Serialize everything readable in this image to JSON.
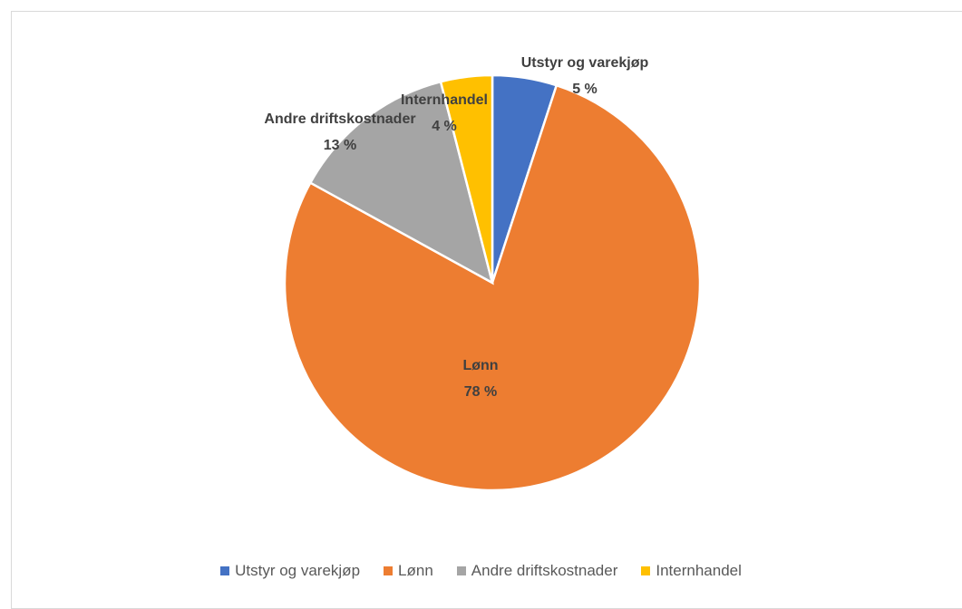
{
  "chart_data": {
    "type": "pie",
    "categories": [
      "Utstyr og varekjøp",
      "Lønn",
      "Andre driftskostnader",
      "Internhandel"
    ],
    "values": [
      5,
      78,
      13,
      4
    ],
    "value_labels": [
      "5 %",
      "78 %",
      "13 %",
      "4 %"
    ],
    "colors": [
      "#4472c4",
      "#ed7d31",
      "#a5a5a5",
      "#ffc000"
    ],
    "legend": "bottom"
  }
}
